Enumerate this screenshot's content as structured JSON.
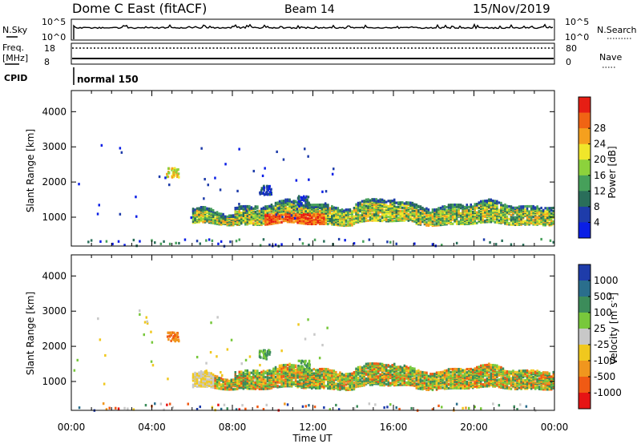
{
  "header": {
    "station": "Dome C East (fitACF)",
    "beam": "Beam 14",
    "date": "15/Nov/2019"
  },
  "status_panels": {
    "nsky": {
      "label": "N.Sky",
      "ticks": [
        "10^5",
        "10^0"
      ]
    },
    "nsearch": {
      "label": "N.Search",
      "ticks": [
        "10^5",
        "10^0"
      ]
    },
    "freq": {
      "label_line1": "Freq.",
      "label_line2": "[MHz]",
      "ticks": [
        "18",
        "8"
      ]
    },
    "nave": {
      "label": "Nave",
      "ticks": [
        "80",
        "0"
      ]
    },
    "cpid": {
      "label": "CPID",
      "program": "normal 150"
    }
  },
  "colors": {
    "power_scale": [
      "#0a1ee6",
      "#1e3caa",
      "#2a6e5a",
      "#46a05a",
      "#8cd23c",
      "#f0e62a",
      "#f5a01e",
      "#f06414",
      "#e61e14"
    ],
    "velocity_scale": [
      "#1e3caa",
      "#2a6e8c",
      "#3c8c5a",
      "#78c83c",
      "#c8c8c8",
      "#f0c81e",
      "#f0961e",
      "#f05a14",
      "#e61414"
    ]
  },
  "chart_data": [
    {
      "type": "heatmap",
      "panel": "power",
      "xlabel": "",
      "ylabel": "Slant Range [km]",
      "x_ticks_hours": [
        0,
        4,
        8,
        12,
        16,
        20,
        24
      ],
      "x_tick_labels": [
        "00:00",
        "04:00",
        "08:00",
        "12:00",
        "16:00",
        "20:00",
        "00:00"
      ],
      "xlim_hours": [
        0,
        24
      ],
      "y_ticks": [
        "1000",
        "2000",
        "3000",
        "4000"
      ],
      "ylim": [
        180,
        4600
      ],
      "colorbar": {
        "label": "Power [dB]",
        "ticks": [
          "4",
          "8",
          "12",
          "16",
          "20",
          "24",
          "28"
        ],
        "range": [
          0,
          32
        ]
      },
      "band_hours": [
        6,
        24
      ],
      "band_range_km": [
        850,
        1400
      ],
      "max_level_near_hour": 11,
      "patches": [
        {
          "hour": 5.0,
          "range_km": 2300
        },
        {
          "hour": 9.6,
          "range_km": 1800
        },
        {
          "hour": 11.5,
          "range_km": 1500
        }
      ]
    },
    {
      "type": "heatmap",
      "panel": "velocity",
      "xlabel": "Time UT",
      "ylabel": "Slant Range [km]",
      "x_ticks_hours": [
        0,
        4,
        8,
        12,
        16,
        20,
        24
      ],
      "x_tick_labels": [
        "00:00",
        "04:00",
        "08:00",
        "12:00",
        "16:00",
        "20:00",
        "00:00"
      ],
      "xlim_hours": [
        0,
        24
      ],
      "y_ticks": [
        "1000",
        "2000",
        "3000",
        "4000"
      ],
      "ylim": [
        180,
        4600
      ],
      "colorbar": {
        "label": "Velocity [m s",
        "label_sup": "-1",
        "label_close": "]",
        "ticks": [
          "1000",
          "500",
          "100",
          "25",
          "-25",
          "-100",
          "-500",
          "-1000"
        ]
      },
      "band_hours": [
        6,
        24
      ],
      "band_range_km": [
        850,
        1400
      ]
    }
  ]
}
